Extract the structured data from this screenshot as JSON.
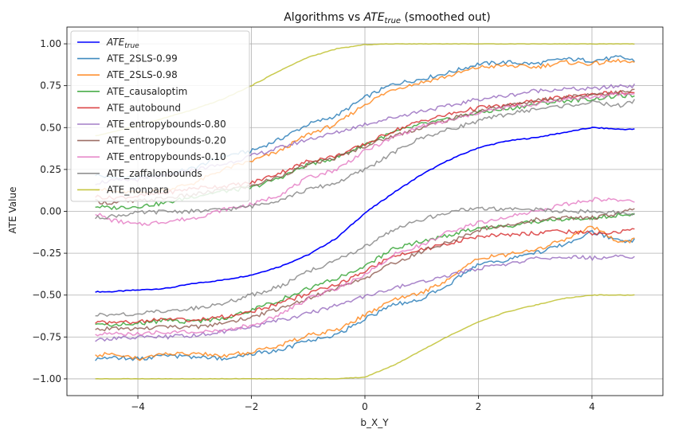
{
  "chart_data": {
    "type": "line",
    "title_prefix": "Algorithms vs ",
    "title_math": "ATE",
    "title_math_sub": "true",
    "title_suffix": " (smoothed out)",
    "xlabel": "b_X_Y",
    "ylabel": "ATE Value",
    "xlim": [
      -5.25,
      5.25
    ],
    "ylim": [
      -1.1,
      1.1
    ],
    "xticks": [
      -4,
      -2,
      0,
      2,
      4
    ],
    "xtick_labels": [
      "−4",
      "−2",
      "0",
      "2",
      "4"
    ],
    "yticks": [
      -1.0,
      -0.75,
      -0.5,
      -0.25,
      0.0,
      0.25,
      0.5,
      0.75,
      1.0
    ],
    "ytick_labels": [
      "−1.00",
      "−0.75",
      "−0.50",
      "−0.25",
      "0.00",
      "0.25",
      "0.50",
      "0.75",
      "1.00"
    ],
    "grid": true,
    "legend_position": "top-left",
    "x": [
      -4.75,
      -4.5,
      -4.0,
      -3.5,
      -3.0,
      -2.5,
      -2.0,
      -1.5,
      -1.0,
      -0.5,
      0.0,
      0.5,
      1.0,
      1.5,
      2.0,
      2.5,
      3.0,
      3.5,
      4.0,
      4.5,
      4.75
    ],
    "series": [
      {
        "name": "ATE",
        "name_sub": "true",
        "color": "#0000ff",
        "upper": [
          -0.48,
          -0.48,
          -0.47,
          -0.46,
          -0.43,
          -0.41,
          -0.38,
          -0.33,
          -0.26,
          -0.16,
          -0.01,
          0.11,
          0.22,
          0.31,
          0.38,
          0.42,
          0.44,
          0.47,
          0.5,
          0.49,
          0.49
        ]
      },
      {
        "name": "ATE_2SLS-0.99",
        "color": "#1f77b4",
        "upper": [
          0.22,
          0.2,
          0.2,
          0.22,
          0.26,
          0.33,
          0.36,
          0.43,
          0.52,
          0.57,
          0.68,
          0.76,
          0.79,
          0.83,
          0.88,
          0.89,
          0.88,
          0.91,
          0.9,
          0.92,
          0.9
        ],
        "lower": [
          -0.88,
          -0.87,
          -0.88,
          -0.86,
          -0.87,
          -0.88,
          -0.85,
          -0.83,
          -0.77,
          -0.74,
          -0.64,
          -0.56,
          -0.52,
          -0.43,
          -0.31,
          -0.29,
          -0.25,
          -0.2,
          -0.12,
          -0.18,
          -0.17
        ]
      },
      {
        "name": "ATE_2SLS-0.98",
        "color": "#ff7f0e",
        "upper": [
          0.14,
          0.12,
          0.11,
          0.13,
          0.17,
          0.25,
          0.3,
          0.36,
          0.46,
          0.52,
          0.64,
          0.73,
          0.77,
          0.81,
          0.86,
          0.87,
          0.86,
          0.89,
          0.88,
          0.9,
          0.88
        ],
        "lower": [
          -0.86,
          -0.85,
          -0.88,
          -0.85,
          -0.85,
          -0.86,
          -0.84,
          -0.8,
          -0.74,
          -0.71,
          -0.62,
          -0.53,
          -0.49,
          -0.4,
          -0.28,
          -0.26,
          -0.23,
          -0.17,
          -0.09,
          -0.19,
          -0.17
        ]
      },
      {
        "name": "ATE_causaloptim",
        "color": "#2ca02c",
        "upper": [
          0.03,
          0.02,
          0.03,
          0.05,
          0.09,
          0.12,
          0.14,
          0.2,
          0.28,
          0.32,
          0.4,
          0.47,
          0.52,
          0.55,
          0.59,
          0.61,
          0.64,
          0.66,
          0.67,
          0.69,
          0.69
        ],
        "lower": [
          -0.67,
          -0.68,
          -0.67,
          -0.65,
          -0.66,
          -0.64,
          -0.59,
          -0.53,
          -0.46,
          -0.4,
          -0.33,
          -0.22,
          -0.18,
          -0.14,
          -0.1,
          -0.09,
          -0.06,
          -0.05,
          -0.04,
          -0.02,
          -0.02
        ]
      },
      {
        "name": "ATE_autobound",
        "color": "#d62728",
        "upper": [
          0.09,
          0.08,
          0.09,
          0.11,
          0.14,
          0.15,
          0.17,
          0.23,
          0.3,
          0.33,
          0.4,
          0.48,
          0.54,
          0.58,
          0.62,
          0.63,
          0.66,
          0.68,
          0.7,
          0.71,
          0.7
        ],
        "lower": [
          -0.67,
          -0.66,
          -0.66,
          -0.64,
          -0.65,
          -0.63,
          -0.6,
          -0.55,
          -0.49,
          -0.44,
          -0.36,
          -0.26,
          -0.23,
          -0.19,
          -0.15,
          -0.14,
          -0.13,
          -0.12,
          -0.13,
          -0.12,
          -0.11
        ]
      },
      {
        "name": "ATE_entropybounds-0.80",
        "color": "#9467bd",
        "upper": [
          0.17,
          0.18,
          0.19,
          0.21,
          0.25,
          0.28,
          0.33,
          0.38,
          0.43,
          0.47,
          0.52,
          0.56,
          0.6,
          0.63,
          0.67,
          0.69,
          0.72,
          0.73,
          0.73,
          0.75,
          0.75
        ],
        "lower": [
          -0.77,
          -0.76,
          -0.75,
          -0.75,
          -0.74,
          -0.72,
          -0.69,
          -0.65,
          -0.61,
          -0.56,
          -0.51,
          -0.46,
          -0.42,
          -0.38,
          -0.34,
          -0.32,
          -0.28,
          -0.27,
          -0.28,
          -0.27,
          -0.27
        ]
      },
      {
        "name": "ATE_entropybounds-0.20",
        "color": "#8c564b",
        "upper": [
          0.06,
          0.05,
          0.06,
          0.08,
          0.1,
          0.13,
          0.15,
          0.21,
          0.28,
          0.32,
          0.39,
          0.45,
          0.5,
          0.55,
          0.6,
          0.63,
          0.66,
          0.68,
          0.7,
          0.71,
          0.72
        ],
        "lower": [
          -0.71,
          -0.7,
          -0.7,
          -0.69,
          -0.69,
          -0.67,
          -0.63,
          -0.58,
          -0.52,
          -0.46,
          -0.4,
          -0.31,
          -0.24,
          -0.18,
          -0.11,
          -0.08,
          -0.05,
          -0.04,
          -0.04,
          -0.01,
          0.01
        ]
      },
      {
        "name": "ATE_entropybounds-0.10",
        "color": "#e377c2",
        "upper": [
          -0.01,
          -0.05,
          -0.08,
          -0.06,
          -0.04,
          0.01,
          0.04,
          0.1,
          0.2,
          0.25,
          0.36,
          0.44,
          0.51,
          0.54,
          0.59,
          0.62,
          0.64,
          0.67,
          0.68,
          0.7,
          0.7
        ],
        "lower": [
          -0.74,
          -0.73,
          -0.73,
          -0.72,
          -0.72,
          -0.71,
          -0.68,
          -0.62,
          -0.52,
          -0.46,
          -0.38,
          -0.26,
          -0.2,
          -0.12,
          -0.07,
          -0.03,
          0.0,
          0.04,
          0.07,
          0.07,
          0.06
        ]
      },
      {
        "name": "ATE_zaffalonbounds",
        "color": "#7f7f7f",
        "upper": [
          -0.04,
          -0.03,
          -0.01,
          0.0,
          0.0,
          0.01,
          0.03,
          0.07,
          0.13,
          0.17,
          0.25,
          0.35,
          0.44,
          0.49,
          0.54,
          0.58,
          0.61,
          0.63,
          0.65,
          0.63,
          0.66
        ],
        "lower": [
          -0.62,
          -0.62,
          -0.61,
          -0.59,
          -0.58,
          -0.55,
          -0.5,
          -0.45,
          -0.36,
          -0.29,
          -0.21,
          -0.11,
          -0.05,
          0.0,
          0.02,
          0.01,
          0.01,
          0.0,
          0.0,
          -0.01,
          -0.02
        ]
      },
      {
        "name": "ATE_nonpara",
        "color": "#bcbd22",
        "upper": [
          0.45,
          0.47,
          0.51,
          0.56,
          0.61,
          0.67,
          0.75,
          0.84,
          0.92,
          0.97,
          0.995,
          1.0,
          1.0,
          1.0,
          1.0,
          1.0,
          1.0,
          1.0,
          1.0,
          1.0,
          1.0
        ],
        "lower": [
          -1.0,
          -1.0,
          -1.0,
          -1.0,
          -1.0,
          -1.0,
          -1.0,
          -1.0,
          -1.0,
          -1.0,
          -0.99,
          -0.92,
          -0.83,
          -0.74,
          -0.66,
          -0.6,
          -0.56,
          -0.52,
          -0.5,
          -0.5,
          -0.5
        ]
      }
    ]
  }
}
